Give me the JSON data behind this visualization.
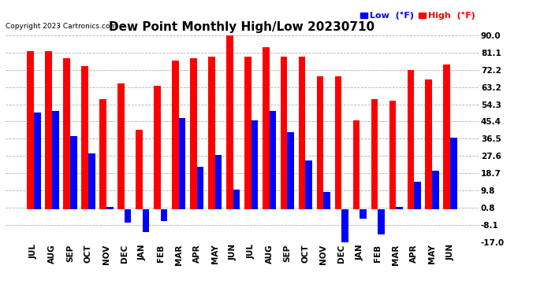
{
  "title": "Dew Point Monthly High/Low 20230710",
  "copyright": "Copyright 2023 Cartronics.com",
  "months": [
    "JUL",
    "AUG",
    "SEP",
    "OCT",
    "NOV",
    "DEC",
    "JAN",
    "FEB",
    "MAR",
    "APR",
    "MAY",
    "JUN",
    "JUL",
    "AUG",
    "SEP",
    "OCT",
    "NOV",
    "DEC",
    "JAN",
    "FEB",
    "MAR",
    "APR",
    "MAY",
    "JUN"
  ],
  "high": [
    82,
    82,
    78,
    74,
    57,
    65,
    41,
    64,
    77,
    78,
    79,
    91,
    79,
    84,
    79,
    79,
    69,
    69,
    46,
    57,
    56,
    72,
    67,
    75
  ],
  "low": [
    50,
    51,
    38,
    29,
    1,
    -7,
    -12,
    -6,
    47,
    22,
    28,
    10,
    46,
    51,
    40,
    25,
    9,
    -18,
    -5,
    -13,
    1,
    14,
    20,
    37
  ],
  "ymin": -17.0,
  "ymax": 90.0,
  "yticks": [
    -17.0,
    -8.1,
    0.8,
    9.8,
    18.7,
    27.6,
    36.5,
    45.4,
    54.3,
    63.2,
    72.2,
    81.1,
    90.0
  ],
  "ytick_labels": [
    "-17.0",
    "-8.1",
    "0.8",
    "9.8",
    "18.7",
    "27.6",
    "36.5",
    "45.4",
    "54.3",
    "63.2",
    "72.2",
    "81.1",
    "90.0"
  ],
  "high_color": "#FF0000",
  "low_color": "#0000FF",
  "bg_color": "#FFFFFF",
  "grid_color": "#B0B0B0",
  "bar_width": 0.38,
  "title_fontsize": 11,
  "tick_fontsize": 7.5,
  "legend_fontsize": 8
}
